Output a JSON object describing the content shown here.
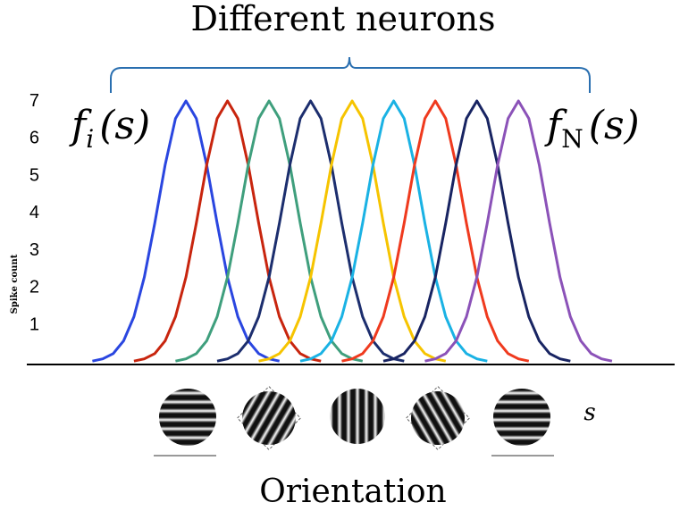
{
  "chart_data": {
    "type": "line",
    "title": "Different neurons",
    "y_label": "Spike count",
    "x_label": "Orientation",
    "annotations": [
      {
        "text": "f",
        "sub": "i",
        "rest": "(s)"
      },
      {
        "text": "f",
        "sub": "N",
        "rest": "(s)"
      },
      {
        "text": "s"
      }
    ],
    "xlim": [
      0,
      31
    ],
    "ylim": [
      0,
      7
    ],
    "yticks": [
      1,
      2,
      3,
      4,
      5,
      6,
      7
    ],
    "series": [
      {
        "color": "#2a46e0",
        "x": [
          3.5,
          4,
          4.5,
          5,
          5.5,
          6,
          6.5,
          7,
          7.5,
          8,
          8.5,
          9,
          9.5,
          10,
          10.5,
          11,
          11.5,
          12,
          12.5
        ],
        "values": [
          0.02,
          0.08,
          0.22,
          0.56,
          1.21,
          2.27,
          3.72,
          5.28,
          6.53,
          7,
          6.53,
          5.28,
          3.72,
          2.27,
          1.21,
          0.56,
          0.22,
          0.08,
          0.02
        ]
      },
      {
        "color": "#c8250e",
        "x": [
          5.5,
          6,
          6.5,
          7,
          7.5,
          8,
          8.5,
          9,
          9.5,
          10,
          10.5,
          11,
          11.5,
          12,
          12.5,
          13,
          13.5,
          14,
          14.5
        ],
        "values": [
          0.02,
          0.08,
          0.22,
          0.56,
          1.21,
          2.27,
          3.72,
          5.28,
          6.53,
          7,
          6.53,
          5.28,
          3.72,
          2.27,
          1.21,
          0.56,
          0.22,
          0.08,
          0.02
        ]
      },
      {
        "color": "#3f9f7d",
        "x": [
          7.5,
          8,
          8.5,
          9,
          9.5,
          10,
          10.5,
          11,
          11.5,
          12,
          12.5,
          13,
          13.5,
          14,
          14.5,
          15,
          15.5,
          16,
          16.5
        ],
        "values": [
          0.02,
          0.08,
          0.22,
          0.56,
          1.21,
          2.27,
          3.72,
          5.28,
          6.53,
          7,
          6.53,
          5.28,
          3.72,
          2.27,
          1.21,
          0.56,
          0.22,
          0.08,
          0.02
        ]
      },
      {
        "color": "#1c2e6e",
        "x": [
          9.5,
          10,
          10.5,
          11,
          11.5,
          12,
          12.5,
          13,
          13.5,
          14,
          14.5,
          15,
          15.5,
          16,
          16.5,
          17,
          17.5,
          18,
          18.5
        ],
        "values": [
          0.02,
          0.08,
          0.22,
          0.56,
          1.21,
          2.27,
          3.72,
          5.28,
          6.53,
          7,
          6.53,
          5.28,
          3.72,
          2.27,
          1.21,
          0.56,
          0.22,
          0.08,
          0.02
        ]
      },
      {
        "color": "#f6c400",
        "x": [
          11.5,
          12,
          12.5,
          13,
          13.5,
          14,
          14.5,
          15,
          15.5,
          16,
          16.5,
          17,
          17.5,
          18,
          18.5,
          19,
          19.5,
          20,
          20.5
        ],
        "values": [
          0.02,
          0.08,
          0.22,
          0.56,
          1.21,
          2.27,
          3.72,
          5.28,
          6.53,
          7,
          6.53,
          5.28,
          3.72,
          2.27,
          1.21,
          0.56,
          0.22,
          0.08,
          0.02
        ]
      },
      {
        "color": "#1ab2e4",
        "x": [
          13.5,
          14,
          14.5,
          15,
          15.5,
          16,
          16.5,
          17,
          17.5,
          18,
          18.5,
          19,
          19.5,
          20,
          20.5,
          21,
          21.5,
          22,
          22.5
        ],
        "values": [
          0.02,
          0.08,
          0.22,
          0.56,
          1.21,
          2.27,
          3.72,
          5.28,
          6.53,
          7,
          6.53,
          5.28,
          3.72,
          2.27,
          1.21,
          0.56,
          0.22,
          0.08,
          0.02
        ]
      },
      {
        "color": "#ef3a1e",
        "x": [
          15.5,
          16,
          16.5,
          17,
          17.5,
          18,
          18.5,
          19,
          19.5,
          20,
          20.5,
          21,
          21.5,
          22,
          22.5,
          23,
          23.5,
          24,
          24.5
        ],
        "values": [
          0.02,
          0.08,
          0.22,
          0.56,
          1.21,
          2.27,
          3.72,
          5.28,
          6.53,
          7,
          6.53,
          5.28,
          3.72,
          2.27,
          1.21,
          0.56,
          0.22,
          0.08,
          0.02
        ]
      },
      {
        "color": "#182462",
        "x": [
          17.5,
          18,
          18.5,
          19,
          19.5,
          20,
          20.5,
          21,
          21.5,
          22,
          22.5,
          23,
          23.5,
          24,
          24.5,
          25,
          25.5,
          26,
          26.5
        ],
        "values": [
          0.02,
          0.08,
          0.22,
          0.56,
          1.21,
          2.27,
          3.72,
          5.28,
          6.53,
          7,
          6.53,
          5.28,
          3.72,
          2.27,
          1.21,
          0.56,
          0.22,
          0.08,
          0.02
        ]
      },
      {
        "color": "#8b52b8",
        "x": [
          19.5,
          20,
          20.5,
          21,
          21.5,
          22,
          22.5,
          23,
          23.5,
          24,
          24.5,
          25,
          25.5,
          26,
          26.5,
          27,
          27.5,
          28,
          28.5
        ],
        "values": [
          0.02,
          0.08,
          0.22,
          0.56,
          1.21,
          2.27,
          3.72,
          5.28,
          6.53,
          7,
          6.53,
          5.28,
          3.72,
          2.27,
          1.21,
          0.56,
          0.22,
          0.08,
          0.02
        ]
      }
    ]
  }
}
